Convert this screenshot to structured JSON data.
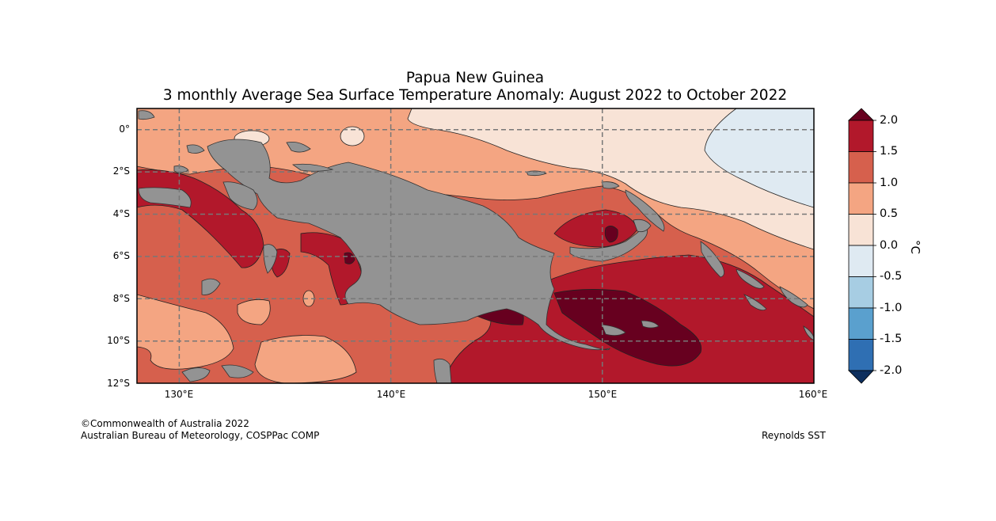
{
  "title": {
    "line1": "Papua New Guinea",
    "line2": "3 monthly Average Sea Surface Temperature Anomaly: August 2022 to October 2022"
  },
  "axes": {
    "lat_labels": [
      "0°",
      "2°S",
      "4°S",
      "6°S",
      "8°S",
      "10°S",
      "12°S"
    ],
    "lon_labels": [
      "130°E",
      "140°E",
      "150°E",
      "160°E"
    ],
    "lat_range": [
      -12,
      1
    ],
    "lon_range": [
      128,
      160
    ]
  },
  "colorbar": {
    "labels": [
      "2.0",
      "1.5",
      "1.0",
      "0.5",
      "0.0",
      "-0.5",
      "-1.0",
      "-1.5",
      "-2.0"
    ],
    "unit": "°C",
    "colors": {
      "gt2": "#67001f",
      "1.5_2.0": "#b2182b",
      "1.0_1.5": "#d6604d",
      "0.5_1.0": "#f4a582",
      "0.0_0.5": "#f8e3d6",
      "-0.5_0.0": "#dfeaf2",
      "-1.0_-0.5": "#a7cde3",
      "-1.5_-1.0": "#5aa0ce",
      "-2.0_-1.5": "#2f6fb3",
      "lt-2": "#0d2f5e"
    },
    "land_color": "#939393"
  },
  "footer": {
    "copyright": "©Commonwealth of Australia 2022",
    "agency": "Australian Bureau of Meteorology, COSPPac COMP",
    "source": "Reynolds SST"
  }
}
